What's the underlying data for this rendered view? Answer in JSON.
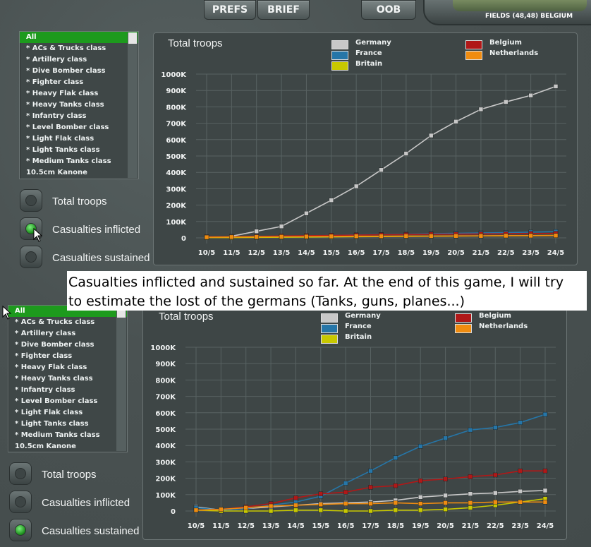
{
  "top_buttons": {
    "prefs": "PREFS",
    "brief": "BRIEF",
    "oob": "OOB"
  },
  "location": "FIELDS (48,48) BELGIUM",
  "caption": {
    "line1": "Casualties inflicted and sustained so far. At the end of this game, I will try",
    "line2": "to estimate the lost of the germans (Tanks, guns, planes...)"
  },
  "unit_list": [
    "All",
    "* ACs & Trucks class",
    "* Artillery class",
    "* Dive Bomber class",
    "* Fighter class",
    "* Heavy Flak class",
    "* Heavy Tanks class",
    "* Infantry class",
    "* Level Bomber class",
    "* Light Flak class",
    "* Light Tanks class",
    "* Medium Tanks class",
    "10.5cm Kanone"
  ],
  "modes": [
    "Total troops",
    "Casualties inflicted",
    "Casualties sustained"
  ],
  "colors": {
    "Germany": "#c8c8c8",
    "France": "#2676a8",
    "Britain": "#c8c800",
    "Belgium": "#b01818",
    "Netherlands": "#f08c10"
  },
  "chart_data": [
    {
      "type": "line",
      "title": "Total troops",
      "selected_mode": "Casualties inflicted",
      "categories": [
        "10/5",
        "11/5",
        "12/5",
        "13/5",
        "14/5",
        "15/5",
        "16/5",
        "17/5",
        "18/5",
        "19/5",
        "20/5",
        "21/5",
        "22/5",
        "23/5",
        "24/5"
      ],
      "y_ticks": [
        "0",
        "100K",
        "200K",
        "300K",
        "400K",
        "500K",
        "600K",
        "700K",
        "800K",
        "900K",
        "1000K"
      ],
      "ylim": [
        0,
        1000
      ],
      "series": [
        {
          "name": "Germany",
          "values": [
            null,
            10,
            40,
            70,
            150,
            230,
            315,
            415,
            515,
            625,
            710,
            785,
            830,
            870,
            925
          ]
        },
        {
          "name": "France",
          "values": [
            5,
            5,
            8,
            10,
            12,
            15,
            18,
            20,
            22,
            25,
            28,
            30,
            32,
            35,
            38
          ]
        },
        {
          "name": "Britain",
          "values": [
            2,
            2,
            3,
            4,
            5,
            6,
            7,
            8,
            9,
            10,
            11,
            12,
            13,
            14,
            15
          ]
        },
        {
          "name": "Belgium",
          "values": [
            6,
            7,
            9,
            11,
            13,
            15,
            17,
            19,
            20,
            22,
            23,
            24,
            25,
            26,
            27
          ]
        },
        {
          "name": "Netherlands",
          "values": [
            4,
            5,
            6,
            7,
            8,
            9,
            10,
            10,
            11,
            11,
            12,
            12,
            13,
            13,
            14
          ]
        }
      ],
      "legend_position": "top-right",
      "grid": true
    },
    {
      "type": "line",
      "title": "Total troops",
      "selected_mode": "Casualties sustained",
      "categories": [
        "10/5",
        "11/5",
        "12/5",
        "13/5",
        "14/5",
        "15/5",
        "16/5",
        "17/5",
        "18/5",
        "19/5",
        "20/5",
        "21/5",
        "22/5",
        "23/5",
        "24/5"
      ],
      "y_ticks": [
        "0",
        "100K",
        "200K",
        "300K",
        "400K",
        "500K",
        "600K",
        "700K",
        "800K",
        "900K",
        "1000K"
      ],
      "ylim": [
        0,
        1000
      ],
      "series": [
        {
          "name": "Germany",
          "values": [
            25,
            5,
            15,
            25,
            35,
            45,
            50,
            55,
            65,
            85,
            95,
            105,
            110,
            120,
            125
          ]
        },
        {
          "name": "France",
          "values": [
            20,
            5,
            15,
            35,
            55,
            90,
            170,
            245,
            325,
            395,
            445,
            495,
            510,
            540,
            590
          ]
        },
        {
          "name": "Britain",
          "values": [
            5,
            0,
            0,
            0,
            5,
            5,
            0,
            0,
            5,
            5,
            10,
            20,
            35,
            55,
            75
          ]
        },
        {
          "name": "Belgium",
          "values": [
            5,
            10,
            25,
            45,
            80,
            105,
            115,
            145,
            155,
            185,
            195,
            210,
            220,
            245,
            245
          ]
        },
        {
          "name": "Netherlands",
          "values": [
            5,
            10,
            20,
            30,
            35,
            40,
            45,
            45,
            50,
            45,
            50,
            50,
            55,
            55,
            55
          ]
        }
      ],
      "legend_position": "top-right",
      "grid": true
    }
  ]
}
